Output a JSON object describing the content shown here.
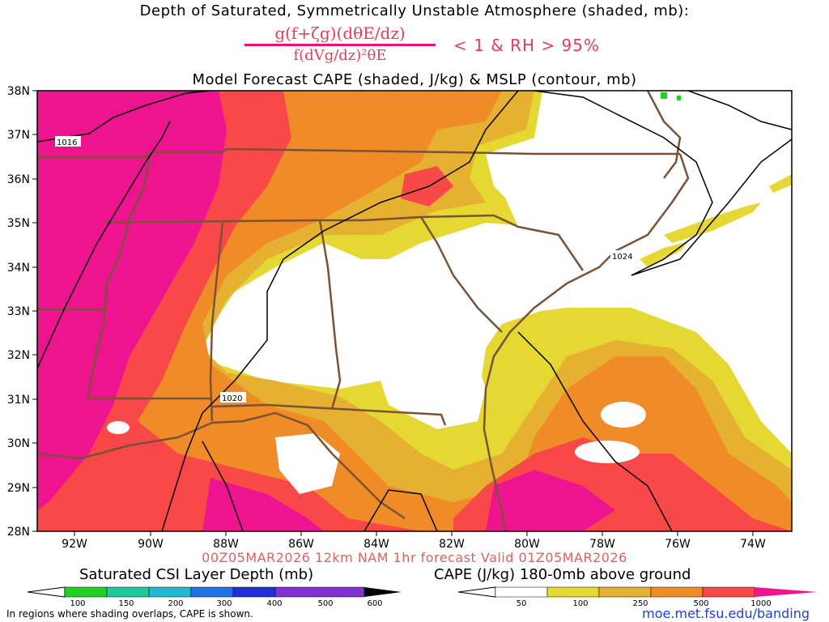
{
  "header": {
    "title": "Depth of Saturated, Symmetrically Unstable Atmosphere (shaded, mb):",
    "formula_numerator": "g(f+ζg)(dθE/dz)",
    "formula_denominator": "f(dVg/dz)²θE",
    "condition": "< 1 & RH > 95%",
    "subtitle": "Model Forecast CAPE (shaded, J/kg) & MSLP (contour, mb)"
  },
  "map": {
    "lat_labels": [
      "38N",
      "37N",
      "36N",
      "35N",
      "34N",
      "33N",
      "32N",
      "31N",
      "30N",
      "29N",
      "28N"
    ],
    "lon_labels": [
      "92W",
      "90W",
      "88W",
      "86W",
      "84W",
      "82W",
      "80W",
      "78W",
      "76W",
      "74W"
    ],
    "isobar_labels": [
      "1016",
      "1020",
      "1024"
    ],
    "colors": {
      "cape_50": "#e6d832",
      "cape_100": "#e6b030",
      "cape_250": "#f08c28",
      "cape_500": "#f84848",
      "cape_1000": "#ee1490",
      "borders": "#7b5238",
      "isobars": "#000000"
    }
  },
  "footer": {
    "valid_line": "00Z05MAR2026 12km NAM 1hr forecast Valid 01Z05MAR2026",
    "legend_left_title": "Saturated CSI Layer Depth (mb)",
    "legend_right_title": "CAPE (J/kg) 180-0mb above ground",
    "legend_left_ticks": [
      "100",
      "150",
      "200",
      "300",
      "400",
      "500",
      "600"
    ],
    "legend_right_ticks": [
      "50",
      "100",
      "250",
      "500",
      "1000"
    ],
    "legend_left_colors": [
      "#22d022",
      "#20c8a0",
      "#20b8d0",
      "#2070e8",
      "#2030d8",
      "#8030d0"
    ],
    "legend_right_colors": [
      "#e6d832",
      "#e6b030",
      "#f08c28",
      "#f84848",
      "#ee1490"
    ],
    "note": "In regions where shading overlaps, CAPE is shown.",
    "url": "moe.met.fsu.edu/banding"
  }
}
